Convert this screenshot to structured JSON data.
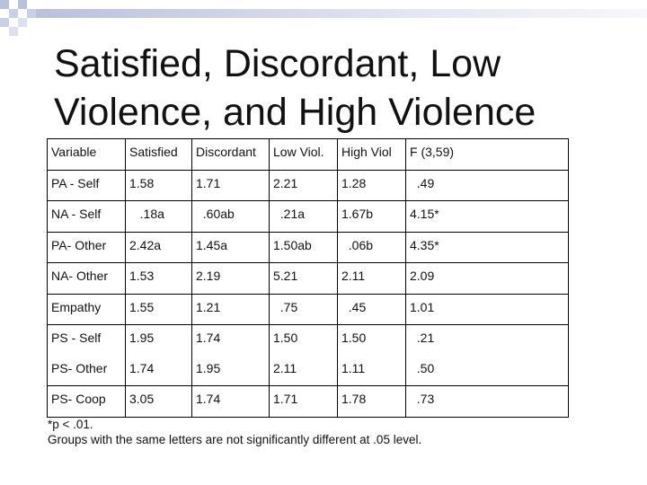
{
  "slide": {
    "title": "Satisfied, Discordant, Low\nViolence,  and High Violence"
  },
  "table": {
    "headers": [
      "Variable",
      "Satisfied",
      "Discordant",
      "Low Viol.",
      "High Viol",
      "F (3,59)"
    ],
    "rows": [
      [
        [
          "PA - Self"
        ],
        [
          "1.58"
        ],
        [
          "1.71"
        ],
        [
          "2.21"
        ],
        [
          "1.28"
        ],
        [
          "  .49"
        ]
      ],
      [
        [
          "NA - Self"
        ],
        [
          "   .18a"
        ],
        [
          "  .60ab"
        ],
        [
          "  .21a"
        ],
        [
          "1.67b"
        ],
        [
          "4.15*"
        ]
      ],
      [
        [
          "PA- Other"
        ],
        [
          "2.42a"
        ],
        [
          "1.45a"
        ],
        [
          "1.50ab"
        ],
        [
          "  .06b"
        ],
        [
          "4.35*"
        ]
      ],
      [
        [
          "NA- Other"
        ],
        [
          "1.53"
        ],
        [
          "2.19"
        ],
        [
          "5.21"
        ],
        [
          "2.11"
        ],
        [
          "2.09"
        ]
      ],
      [
        [
          "Empathy"
        ],
        [
          "1.55"
        ],
        [
          "1.21"
        ],
        [
          "  .75"
        ],
        [
          "  .45"
        ],
        [
          "1.01"
        ]
      ],
      [
        [
          "PS - Self",
          "PS- Other"
        ],
        [
          "1.95",
          "1.74"
        ],
        [
          "1.74",
          "1.95"
        ],
        [
          "1.50",
          "2.11"
        ],
        [
          "1.50",
          "1.11"
        ],
        [
          "  .21",
          "  .50"
        ]
      ],
      [
        [
          "PS- Coop"
        ],
        [
          "3.05"
        ],
        [
          "1.74"
        ],
        [
          "1.71"
        ],
        [
          "1.78"
        ],
        [
          "  .73"
        ]
      ]
    ]
  },
  "notes": {
    "line1": "*p < .01.",
    "line2": "Groups with the same letters are not significantly different at .05 level."
  }
}
